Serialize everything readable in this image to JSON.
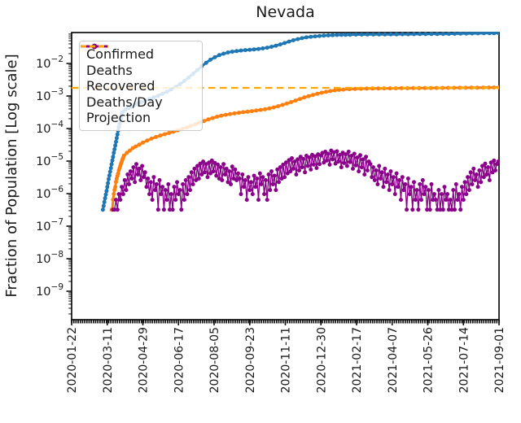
{
  "chart_data": {
    "type": "line",
    "title": "Nevada",
    "ylabel": "Fraction of Population [Log scale]",
    "xlabel": "",
    "y_scale": "log",
    "ylim": [
      1.3e-10,
      0.089
    ],
    "grid": false,
    "legend_position": "upper left",
    "population_divisor": 3100000,
    "x_axis": {
      "end_day": 588,
      "tick_days": [
        0,
        49,
        98,
        147,
        196,
        245,
        294,
        343,
        392,
        441,
        490,
        539,
        588
      ],
      "tick_labels": [
        "2020-01-22",
        "2020-03-11",
        "2020-04-29",
        "2020-06-17",
        "2020-08-05",
        "2020-09-23",
        "2020-11-11",
        "2020-12-30",
        "2021-02-17",
        "2021-04-07",
        "2021-05-26",
        "2021-07-14",
        "2021-09-01"
      ]
    },
    "y_axis": {
      "tick_exponents": [
        -2,
        -3,
        -4,
        -5,
        -6,
        -7,
        -8,
        -9
      ]
    },
    "series": [
      {
        "name": "Confirmed",
        "color": "#1f77b4",
        "style": "line-marker",
        "points": [
          [
            43,
            3.2e-07
          ],
          [
            44,
            4.2e-07
          ],
          [
            45,
            5.5e-07
          ],
          [
            46,
            7.2e-07
          ],
          [
            47,
            9.4e-07
          ],
          [
            48,
            1.2e-06
          ],
          [
            49,
            1.6e-06
          ],
          [
            50,
            2.1e-06
          ],
          [
            51,
            2.8e-06
          ],
          [
            52,
            3.6e-06
          ],
          [
            53,
            4.7e-06
          ],
          [
            54,
            6.1e-06
          ],
          [
            55,
            8e-06
          ],
          [
            56,
            1.05e-05
          ],
          [
            57,
            1.35e-05
          ],
          [
            58,
            1.8e-05
          ],
          [
            59,
            2.3e-05
          ],
          [
            60,
            3e-05
          ],
          [
            61,
            3.9e-05
          ],
          [
            62,
            5.1e-05
          ],
          [
            63,
            6.6e-05
          ],
          [
            64,
            8.6e-05
          ],
          [
            65,
            0.00011
          ],
          [
            66,
            0.00014
          ],
          [
            67,
            0.00018
          ],
          [
            68,
            0.00022
          ],
          [
            69,
            0.00027
          ],
          [
            70,
            0.00032
          ],
          [
            74,
            0.00038
          ],
          [
            78,
            0.00043
          ],
          [
            82,
            0.00048
          ],
          [
            86,
            0.00053
          ],
          [
            91,
            0.00059
          ],
          [
            96,
            0.00065
          ],
          [
            101,
            0.00072
          ],
          [
            107,
            0.0008
          ],
          [
            113,
            0.0009
          ],
          [
            119,
            0.00102
          ],
          [
            125,
            0.00117
          ],
          [
            131,
            0.00135
          ],
          [
            137,
            0.0016
          ],
          [
            143,
            0.0019
          ],
          [
            149,
            0.0023
          ],
          [
            155,
            0.0029
          ],
          [
            161,
            0.0037
          ],
          [
            167,
            0.0048
          ],
          [
            173,
            0.0063
          ],
          [
            179,
            0.0082
          ],
          [
            185,
            0.0105
          ],
          [
            191,
            0.013
          ],
          [
            197,
            0.0155
          ],
          [
            203,
            0.018
          ],
          [
            209,
            0.02
          ],
          [
            215,
            0.0217
          ],
          [
            221,
            0.023
          ],
          [
            227,
            0.024
          ],
          [
            233,
            0.025
          ],
          [
            239,
            0.0257
          ],
          [
            245,
            0.0263
          ],
          [
            251,
            0.027
          ],
          [
            257,
            0.0278
          ],
          [
            263,
            0.029
          ],
          [
            269,
            0.0305
          ],
          [
            275,
            0.0325
          ],
          [
            281,
            0.035
          ],
          [
            287,
            0.0385
          ],
          [
            293,
            0.0425
          ],
          [
            299,
            0.047
          ],
          [
            305,
            0.0515
          ],
          [
            311,
            0.056
          ],
          [
            317,
            0.06
          ],
          [
            323,
            0.0635
          ],
          [
            329,
            0.066
          ],
          [
            335,
            0.068
          ],
          [
            341,
            0.07
          ],
          [
            347,
            0.0715
          ],
          [
            353,
            0.073
          ],
          [
            359,
            0.074
          ],
          [
            365,
            0.075
          ],
          [
            371,
            0.0755
          ],
          [
            377,
            0.076
          ],
          [
            383,
            0.0765
          ],
          [
            391,
            0.077
          ],
          [
            399,
            0.0772
          ],
          [
            407,
            0.0775
          ],
          [
            415,
            0.0778
          ],
          [
            423,
            0.078
          ],
          [
            431,
            0.0782
          ],
          [
            439,
            0.0785
          ],
          [
            447,
            0.0787
          ],
          [
            455,
            0.079
          ],
          [
            463,
            0.0792
          ],
          [
            471,
            0.0795
          ],
          [
            479,
            0.0797
          ],
          [
            487,
            0.08
          ],
          [
            495,
            0.0802
          ],
          [
            503,
            0.0805
          ],
          [
            511,
            0.0808
          ],
          [
            519,
            0.0812
          ],
          [
            527,
            0.0818
          ],
          [
            535,
            0.0825
          ],
          [
            543,
            0.083
          ],
          [
            551,
            0.0835
          ],
          [
            559,
            0.084
          ],
          [
            567,
            0.0845
          ],
          [
            575,
            0.085
          ],
          [
            581,
            0.085
          ],
          [
            588,
            0.085
          ]
        ]
      },
      {
        "name": "Deaths",
        "color": "#ff7f0e",
        "style": "line-marker",
        "points": [
          [
            55,
            3.2e-07
          ],
          [
            56,
            3.2e-07
          ],
          [
            57,
            6.5e-07
          ],
          [
            58,
            9.7e-07
          ],
          [
            59,
            1.3e-06
          ],
          [
            60,
            1.6e-06
          ],
          [
            61,
            2.3e-06
          ],
          [
            62,
            2.9e-06
          ],
          [
            63,
            3.5e-06
          ],
          [
            64,
            4.2e-06
          ],
          [
            65,
            5.2e-06
          ],
          [
            66,
            6.1e-06
          ],
          [
            67,
            7.1e-06
          ],
          [
            68,
            8.4e-06
          ],
          [
            69,
            9.7e-06
          ],
          [
            70,
            1.13e-05
          ],
          [
            71,
            1.29e-05
          ],
          [
            72,
            1.48e-05
          ],
          [
            76,
            1.8e-05
          ],
          [
            80,
            2.1e-05
          ],
          [
            84,
            2.5e-05
          ],
          [
            88,
            2.8e-05
          ],
          [
            93,
            3.2e-05
          ],
          [
            98,
            3.7e-05
          ],
          [
            104,
            4.3e-05
          ],
          [
            110,
            4.9e-05
          ],
          [
            116,
            5.5e-05
          ],
          [
            122,
            6.1e-05
          ],
          [
            128,
            6.7e-05
          ],
          [
            134,
            7.3e-05
          ],
          [
            140,
            8e-05
          ],
          [
            146,
            8.8e-05
          ],
          [
            152,
            9.7e-05
          ],
          [
            158,
            0.000107
          ],
          [
            164,
            0.00012
          ],
          [
            170,
            0.000135
          ],
          [
            176,
            0.000152
          ],
          [
            182,
            0.00017
          ],
          [
            188,
            0.00019
          ],
          [
            194,
            0.00021
          ],
          [
            200,
            0.00023
          ],
          [
            206,
            0.000248
          ],
          [
            212,
            0.000264
          ],
          [
            218,
            0.000278
          ],
          [
            224,
            0.000292
          ],
          [
            230,
            0.000305
          ],
          [
            236,
            0.000318
          ],
          [
            242,
            0.00033
          ],
          [
            248,
            0.000343
          ],
          [
            254,
            0.000357
          ],
          [
            260,
            0.000373
          ],
          [
            266,
            0.000392
          ],
          [
            272,
            0.000415
          ],
          [
            278,
            0.000445
          ],
          [
            284,
            0.000485
          ],
          [
            290,
            0.00053
          ],
          [
            296,
            0.000585
          ],
          [
            302,
            0.00065
          ],
          [
            308,
            0.000725
          ],
          [
            314,
            0.00081
          ],
          [
            320,
            0.0009
          ],
          [
            326,
            0.00099
          ],
          [
            332,
            0.00108
          ],
          [
            338,
            0.00117
          ],
          [
            344,
            0.00126
          ],
          [
            350,
            0.00134
          ],
          [
            356,
            0.00142
          ],
          [
            362,
            0.00149
          ],
          [
            368,
            0.00154
          ],
          [
            374,
            0.00158
          ],
          [
            382,
            0.00162
          ],
          [
            390,
            0.00165
          ],
          [
            398,
            0.00167
          ],
          [
            406,
            0.00169
          ],
          [
            414,
            0.0017
          ],
          [
            422,
            0.00171
          ],
          [
            430,
            0.001715
          ],
          [
            438,
            0.00172
          ],
          [
            446,
            0.00173
          ],
          [
            454,
            0.001735
          ],
          [
            462,
            0.00174
          ],
          [
            470,
            0.001745
          ],
          [
            478,
            0.00175
          ],
          [
            486,
            0.001755
          ],
          [
            494,
            0.00176
          ],
          [
            502,
            0.001765
          ],
          [
            510,
            0.00177
          ],
          [
            518,
            0.001775
          ],
          [
            526,
            0.00178
          ],
          [
            534,
            0.001785
          ],
          [
            542,
            0.00179
          ],
          [
            550,
            0.001795
          ],
          [
            558,
            0.0018
          ],
          [
            566,
            0.00181
          ],
          [
            574,
            0.001815
          ],
          [
            581,
            0.00182
          ],
          [
            588,
            0.00183
          ]
        ]
      },
      {
        "name": "Recovered",
        "color": "#2ca02c",
        "style": "line-marker",
        "points": []
      },
      {
        "name": "Deaths/Day",
        "color": "#8b008b",
        "style": "line-marker",
        "start_day": 57,
        "day_step": 2,
        "counts": [
          1,
          1,
          2,
          1,
          3,
          2,
          5,
          3,
          8,
          4,
          12,
          6,
          15,
          9,
          20,
          7,
          25,
          12,
          18,
          8,
          22,
          10,
          14,
          5,
          9,
          3,
          7,
          2,
          10,
          4,
          6,
          1,
          8,
          3,
          5,
          1,
          4,
          2,
          6,
          1,
          3,
          1,
          5,
          2,
          7,
          3,
          4,
          1,
          6,
          2,
          8,
          3,
          10,
          4,
          14,
          6,
          18,
          8,
          22,
          9,
          26,
          12,
          30,
          14,
          25,
          10,
          28,
          13,
          32,
          15,
          27,
          11,
          24,
          9,
          20,
          8,
          25,
          12,
          18,
          7,
          15,
          6,
          21,
          9,
          17,
          8,
          13,
          9,
          3,
          12,
          5,
          8,
          2,
          10,
          4,
          7,
          3,
          11,
          5,
          9,
          2,
          13,
          6,
          10,
          3,
          8,
          2,
          12,
          4,
          15,
          6,
          11,
          4,
          17,
          7,
          20,
          9,
          24,
          10,
          28,
          13,
          33,
          15,
          38,
          18,
          30,
          12,
          35,
          16,
          42,
          20,
          36,
          14,
          45,
          22,
          40,
          17,
          48,
          24,
          43,
          19,
          50,
          25,
          46,
          55,
          28,
          60,
          32,
          52,
          24,
          65,
          35,
          58,
          26,
          62,
          30,
          48,
          20,
          56,
          27,
          50,
          22,
          60,
          29,
          45,
          18,
          52,
          23,
          40,
          15,
          47,
          20,
          35,
          12,
          42,
          16,
          30,
          25,
          10,
          20,
          8,
          16,
          6,
          22,
          9,
          14,
          5,
          18,
          7,
          12,
          4,
          15,
          6,
          10,
          3,
          13,
          5,
          8,
          2,
          10,
          4,
          6,
          1,
          9,
          3,
          5,
          1,
          7,
          2,
          4,
          1,
          6,
          2,
          8,
          3,
          5,
          1,
          4,
          1,
          6,
          2,
          3,
          2,
          1,
          4,
          1,
          3,
          1,
          5,
          2,
          3,
          1,
          2,
          1,
          4,
          1,
          6,
          2,
          3,
          1,
          5,
          2,
          7,
          3,
          10,
          4,
          14,
          6,
          18,
          8,
          12,
          5,
          16,
          7,
          22,
          10,
          26,
          12,
          20,
          8,
          28,
          14,
          32,
          16,
          25,
          30
        ]
      },
      {
        "name": "Projection",
        "color": "#ffa500",
        "style": "dashed",
        "value": 0.00178
      }
    ]
  }
}
